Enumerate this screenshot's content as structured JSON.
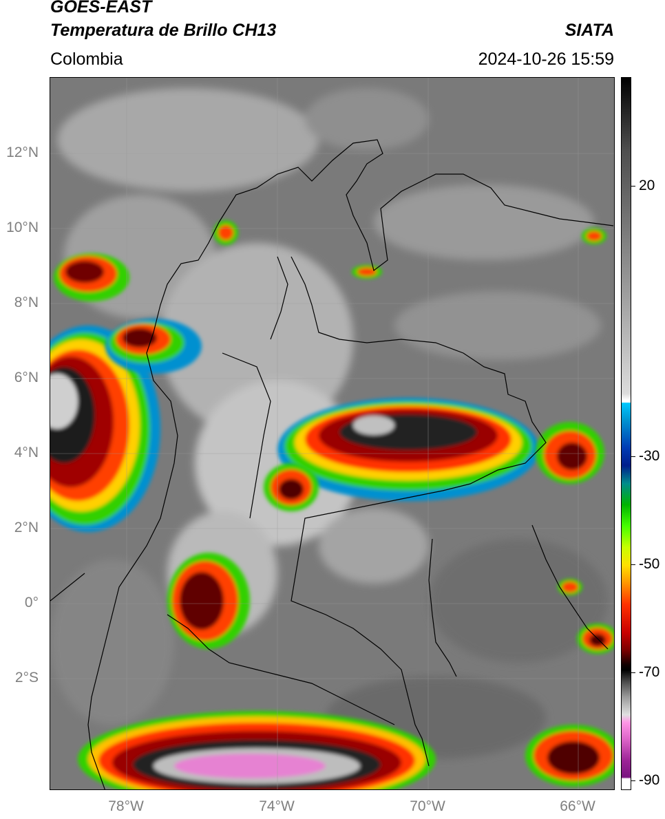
{
  "header": {
    "satellite": "GOES-EAST",
    "product": "Temperatura de Brillo CH13",
    "institution": "SIATA",
    "region": "Colombia",
    "timestamp": "2024-10-26 15:59"
  },
  "map": {
    "latitude_labels": [
      "12°N",
      "10°N",
      "8°N",
      "6°N",
      "4°N",
      "2°N",
      "0°",
      "2°S"
    ],
    "longitude_labels": [
      "78°W",
      "74°W",
      "70°W",
      "66°W"
    ]
  },
  "colorbar": {
    "ticks": [
      "20",
      "-30",
      "-50",
      "-70",
      "-90"
    ]
  },
  "colors": {
    "cloud_gray_cold": "#d8d8d8",
    "cold_top_red": "#c80000",
    "very_cold_pink": "#e682d2",
    "boundary": "#000000"
  }
}
